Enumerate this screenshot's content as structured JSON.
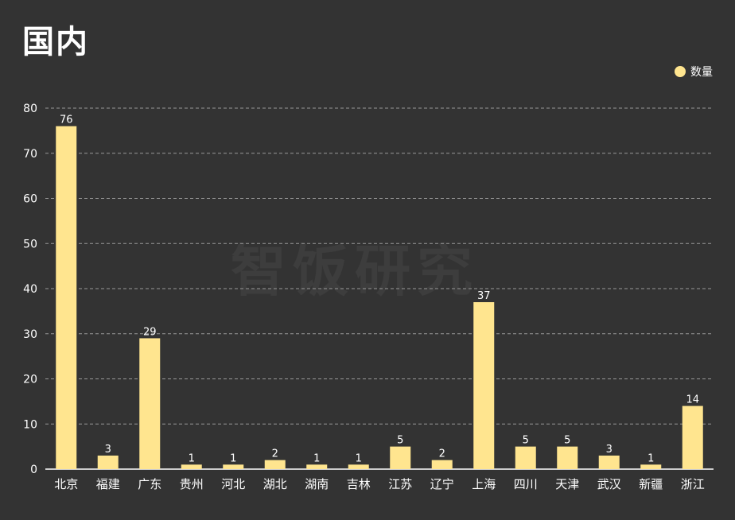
{
  "title": "国内",
  "watermark": "智饭研究",
  "chart_data": {
    "type": "bar",
    "categories": [
      "北京",
      "福建",
      "广东",
      "贵州",
      "河北",
      "湖北",
      "湖南",
      "吉林",
      "江苏",
      "辽宁",
      "上海",
      "四川",
      "天津",
      "武汉",
      "新疆",
      "浙江"
    ],
    "series": [
      {
        "name": "数量",
        "values": [
          76,
          3,
          29,
          1,
          1,
          2,
          1,
          1,
          5,
          2,
          37,
          5,
          5,
          3,
          1,
          14
        ]
      }
    ],
    "ylim": [
      0,
      80
    ],
    "yticks": [
      0,
      10,
      20,
      30,
      40,
      50,
      60,
      70,
      80
    ],
    "grid": true,
    "legend_position": "top-right",
    "bar_color": "#ffe58f"
  }
}
